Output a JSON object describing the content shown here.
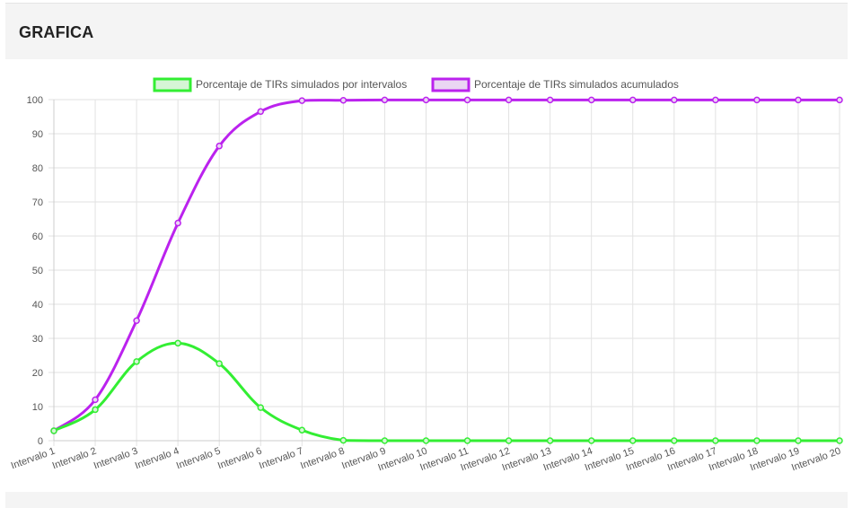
{
  "header": {
    "title": "GRAFICA"
  },
  "chart_data": {
    "type": "line",
    "categories": [
      "Intervalo 1",
      "Intervalo 2",
      "Intervalo 3",
      "Intervalo 4",
      "Intervalo 5",
      "Intervalo 6",
      "Intervalo 7",
      "Intervalo 8",
      "Intervalo 9",
      "Intervalo 10",
      "Intervalo 11",
      "Intervalo 12",
      "Intervalo 13",
      "Intervalo 14",
      "Intervalo 15",
      "Intervalo 16",
      "Intervalo 17",
      "Intervalo 18",
      "Intervalo 19",
      "Intervalo 20"
    ],
    "series": [
      {
        "name": "Porcentaje de TIRs simulados por intervalos",
        "color": "#33ee33",
        "fill": "#d6f5d6",
        "values": [
          2.9,
          9.1,
          23.2,
          28.6,
          22.6,
          9.7,
          3.1,
          0.1,
          0,
          0,
          0,
          0,
          0,
          0,
          0,
          0,
          0,
          0,
          0,
          0
        ]
      },
      {
        "name": "Porcentaje de TIRs simulados acumulados",
        "color": "#bb22ee",
        "fill": "#ead6f3",
        "values": [
          2.9,
          12.0,
          35.2,
          63.8,
          86.4,
          96.5,
          99.7,
          99.8,
          99.9,
          99.9,
          99.9,
          99.9,
          99.9,
          99.9,
          99.9,
          99.9,
          99.9,
          99.9,
          99.9,
          99.9
        ]
      }
    ],
    "ylim": [
      0,
      100
    ],
    "yticks": [
      0,
      10,
      20,
      30,
      40,
      50,
      60,
      70,
      80,
      90,
      100
    ],
    "xlabel": "",
    "ylabel": "",
    "grid": true,
    "legend_position": "top-center"
  }
}
